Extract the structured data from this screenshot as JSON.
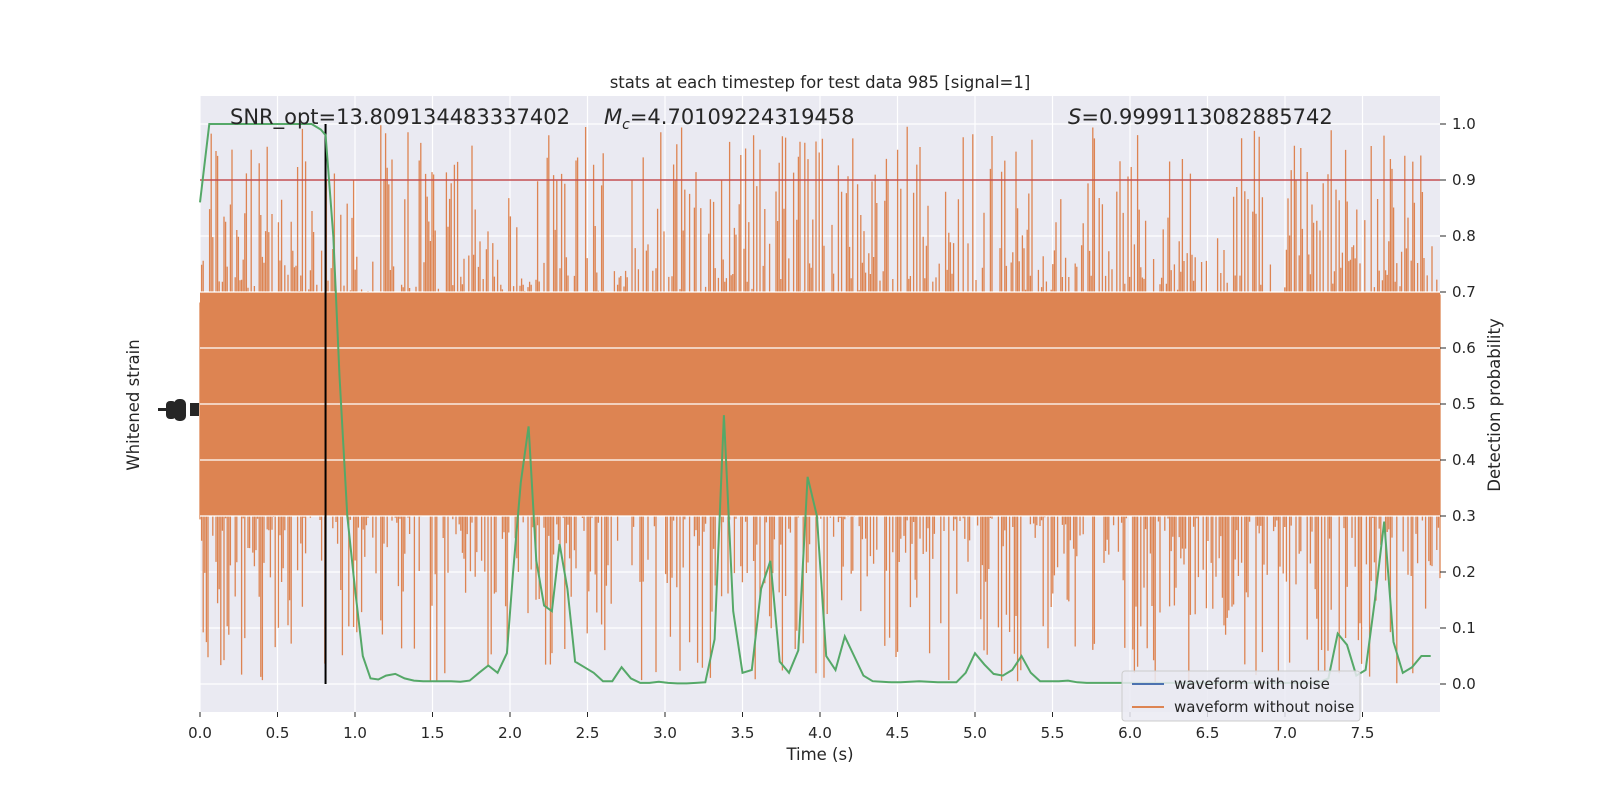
{
  "chart_data": {
    "type": "line",
    "title": "stats at each timestep for test data 985 [signal=1]",
    "xlabel": "Time (s)",
    "ylabel_left": "Whitened strain",
    "ylabel_right": "Detection probability",
    "xlim": [
      0.0,
      8.0
    ],
    "ylim_right": [
      -0.05,
      1.05
    ],
    "x_ticks": [
      "0.0",
      "0.5",
      "1.0",
      "1.5",
      "2.0",
      "2.5",
      "3.0",
      "3.5",
      "4.0",
      "4.5",
      "5.0",
      "5.5",
      "6.0",
      "6.5",
      "7.0",
      "7.5"
    ],
    "x_tick_values": [
      0.0,
      0.5,
      1.0,
      1.5,
      2.0,
      2.5,
      3.0,
      3.5,
      4.0,
      4.5,
      5.0,
      5.5,
      6.0,
      6.5,
      7.0,
      7.5
    ],
    "y_right_ticks": [
      "0.0",
      "0.1",
      "0.2",
      "0.3",
      "0.4",
      "0.5",
      "0.6",
      "0.7",
      "0.8",
      "0.9",
      "1.0"
    ],
    "y_right_tick_values": [
      0.0,
      0.1,
      0.2,
      0.3,
      0.4,
      0.5,
      0.6,
      0.7,
      0.8,
      0.9,
      1.0
    ],
    "grid": true,
    "legend_position": "lower-right",
    "annotations": {
      "snr_label": "SNR_opt=13.809134483337402",
      "mc_prefix": "M",
      "mc_sub": "c",
      "mc_value": "=4.70109224319458",
      "s_prefix": "S",
      "s_value": "=0.9999113082885742"
    },
    "threshold": 0.9,
    "marker_time": 0.81,
    "series": [
      {
        "name": "waveform with noise",
        "color": "#4c72b0"
      },
      {
        "name": "waveform without noise",
        "color": "#dd8452"
      },
      {
        "color": "#55a868",
        "x": [
          0.0,
          0.06,
          0.12,
          0.18,
          0.24,
          0.3,
          0.36,
          0.42,
          0.48,
          0.54,
          0.6,
          0.66,
          0.72,
          0.78,
          0.81,
          0.86,
          0.9,
          0.95,
          1.0,
          1.05,
          1.1,
          1.15,
          1.2,
          1.26,
          1.32,
          1.38,
          1.44,
          1.5,
          1.56,
          1.62,
          1.68,
          1.74,
          1.8,
          1.86,
          1.92,
          1.98,
          2.02,
          2.07,
          2.12,
          2.17,
          2.22,
          2.27,
          2.32,
          2.37,
          2.42,
          2.48,
          2.54,
          2.6,
          2.66,
          2.72,
          2.78,
          2.84,
          2.9,
          2.96,
          3.02,
          3.08,
          3.14,
          3.2,
          3.26,
          3.32,
          3.38,
          3.44,
          3.5,
          3.56,
          3.62,
          3.68,
          3.74,
          3.8,
          3.86,
          3.92,
          3.98,
          4.04,
          4.1,
          4.16,
          4.22,
          4.28,
          4.34,
          4.4,
          4.46,
          4.52,
          4.58,
          4.64,
          4.7,
          4.76,
          4.82,
          4.88,
          4.94,
          5.0,
          5.06,
          5.12,
          5.18,
          5.24,
          5.3,
          5.36,
          5.42,
          5.48,
          5.54,
          5.6,
          5.66,
          5.72,
          5.78,
          5.84,
          5.9,
          5.96,
          6.02,
          6.08,
          6.14,
          6.2,
          6.26,
          6.32,
          6.38,
          6.44,
          6.5,
          6.56,
          6.62,
          6.68,
          6.74,
          6.8,
          6.86,
          6.92,
          6.98,
          7.04,
          7.1,
          7.16,
          7.22,
          7.28,
          7.34,
          7.4,
          7.46,
          7.52,
          7.58,
          7.64,
          7.7,
          7.76,
          7.82,
          7.88,
          7.94
        ],
        "values": [
          0.86,
          1.0,
          1.0,
          1.0,
          1.0,
          1.0,
          1.0,
          1.0,
          1.0,
          1.0,
          1.0,
          1.0,
          1.0,
          0.99,
          0.98,
          0.8,
          0.55,
          0.3,
          0.17,
          0.05,
          0.01,
          0.008,
          0.015,
          0.018,
          0.01,
          0.006,
          0.005,
          0.005,
          0.005,
          0.005,
          0.004,
          0.006,
          0.02,
          0.033,
          0.02,
          0.055,
          0.2,
          0.36,
          0.46,
          0.22,
          0.14,
          0.13,
          0.25,
          0.17,
          0.04,
          0.03,
          0.02,
          0.005,
          0.005,
          0.03,
          0.01,
          0.002,
          0.002,
          0.004,
          0.002,
          0.001,
          0.001,
          0.002,
          0.003,
          0.08,
          0.48,
          0.13,
          0.02,
          0.025,
          0.17,
          0.22,
          0.04,
          0.02,
          0.06,
          0.37,
          0.3,
          0.05,
          0.025,
          0.085,
          0.05,
          0.015,
          0.005,
          0.004,
          0.003,
          0.003,
          0.004,
          0.005,
          0.004,
          0.003,
          0.003,
          0.003,
          0.02,
          0.055,
          0.035,
          0.018,
          0.015,
          0.025,
          0.05,
          0.02,
          0.005,
          0.005,
          0.005,
          0.006,
          0.003,
          0.002,
          0.002,
          0.002,
          0.002,
          0.002,
          0.002,
          0.002,
          0.002,
          0.002,
          0.002,
          0.002,
          0.002,
          0.002,
          0.002,
          0.002,
          0.002,
          0.002,
          0.002,
          0.002,
          0.002,
          0.002,
          0.002,
          0.002,
          0.002,
          0.002,
          0.003,
          0.01,
          0.09,
          0.07,
          0.015,
          0.025,
          0.15,
          0.29,
          0.075,
          0.02,
          0.03,
          0.05,
          0.05
        ]
      }
    ]
  }
}
